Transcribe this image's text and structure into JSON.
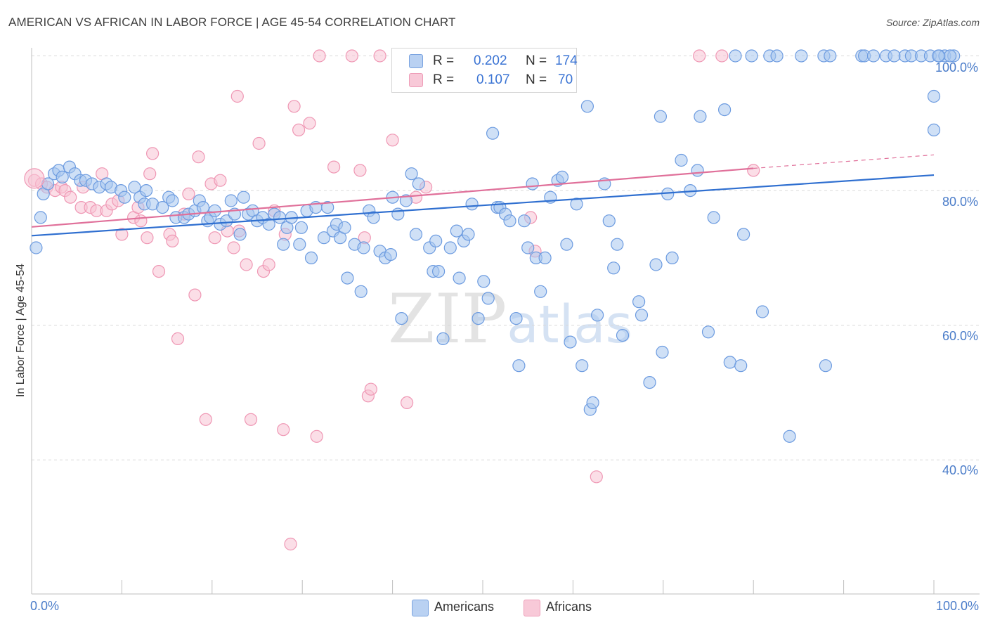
{
  "title": "AMERICAN VS AFRICAN IN LABOR FORCE | AGE 45-54 CORRELATION CHART",
  "source": "Source: ZipAtlas.com",
  "watermark": {
    "zip": "ZIP",
    "atlas": "atlas"
  },
  "legend_top": {
    "americans": {
      "r_label": "R =",
      "r_value": "0.202",
      "n_label": "N =",
      "n_value": "174"
    },
    "africans": {
      "r_label": "R =",
      "r_value": "0.107",
      "n_label": "N =",
      "n_value": "70"
    }
  },
  "legend_bottom": {
    "americans": "Americans",
    "africans": "Africans"
  },
  "colors": {
    "americans_fill": "#a8c6ee",
    "americans_stroke": "#6c9be0",
    "americans_line": "#2f6fd0",
    "africans_fill": "#f7c3d3",
    "africans_stroke": "#ef97b4",
    "africans_line": "#e0709a",
    "tick_text": "#4a7cc9",
    "grid": "#d9d9d9"
  },
  "chart_data": {
    "type": "scatter",
    "title": "AMERICAN VS AFRICAN IN LABOR FORCE | AGE 45-54 CORRELATION CHART",
    "xlabel": "",
    "ylabel": "In Labor Force | Age 45-54",
    "xlim": [
      0,
      100
    ],
    "ylim": [
      20,
      102
    ],
    "x_tick_labels": [
      "0.0%",
      "100.0%"
    ],
    "y_ticks": [
      100,
      80,
      60,
      40
    ],
    "y_tick_labels": [
      "100.0%",
      "80.0%",
      "60.0%",
      "40.0%"
    ],
    "grid": true,
    "legend_position": "top-center",
    "series": [
      {
        "name": "Americans",
        "r": 0.202,
        "n": 174,
        "trend": {
          "x": [
            0,
            100
          ],
          "y": [
            73.3,
            82.3
          ]
        },
        "points": [
          [
            0.5,
            71.5
          ],
          [
            1,
            76
          ],
          [
            1.3,
            79.5
          ],
          [
            1.8,
            81
          ],
          [
            2.5,
            82.5
          ],
          [
            3,
            83
          ],
          [
            3.4,
            82
          ],
          [
            4.2,
            83.5
          ],
          [
            4.8,
            82.5
          ],
          [
            5.4,
            81.5
          ],
          [
            6,
            81.5
          ],
          [
            6.7,
            81
          ],
          [
            7.5,
            80.5
          ],
          [
            8.3,
            81
          ],
          [
            8.8,
            80.5
          ],
          [
            9.9,
            80
          ],
          [
            10.3,
            79
          ],
          [
            11.4,
            80.5
          ],
          [
            12,
            79
          ],
          [
            12.5,
            78
          ],
          [
            12.7,
            80
          ],
          [
            13.4,
            78
          ],
          [
            14.5,
            77.5
          ],
          [
            15.2,
            79
          ],
          [
            15.6,
            78.5
          ],
          [
            16,
            76
          ],
          [
            16.9,
            76
          ],
          [
            17.4,
            76.5
          ],
          [
            18.1,
            77
          ],
          [
            18.6,
            78.5
          ],
          [
            19,
            77.5
          ],
          [
            19.5,
            75.5
          ],
          [
            19.8,
            76
          ],
          [
            20.3,
            77
          ],
          [
            20.9,
            75
          ],
          [
            21.6,
            75.5
          ],
          [
            22.1,
            78.5
          ],
          [
            22.5,
            76.5
          ],
          [
            23.1,
            73.5
          ],
          [
            23.5,
            79
          ],
          [
            24,
            76.5
          ],
          [
            24.5,
            77
          ],
          [
            25,
            75.5
          ],
          [
            25.6,
            76
          ],
          [
            26.3,
            75
          ],
          [
            26.9,
            76.5
          ],
          [
            27.5,
            76
          ],
          [
            27.9,
            72
          ],
          [
            28.3,
            74.5
          ],
          [
            28.8,
            76
          ],
          [
            29.7,
            72
          ],
          [
            29.9,
            74.5
          ],
          [
            30.5,
            77
          ],
          [
            31,
            70
          ],
          [
            31.5,
            77.5
          ],
          [
            32.4,
            73
          ],
          [
            32.8,
            77.5
          ],
          [
            33.4,
            74
          ],
          [
            33.8,
            75
          ],
          [
            34.2,
            73
          ],
          [
            34.7,
            74.5
          ],
          [
            35,
            67
          ],
          [
            35.8,
            72
          ],
          [
            36.5,
            65
          ],
          [
            36.8,
            71.5
          ],
          [
            37.4,
            77
          ],
          [
            37.9,
            76
          ],
          [
            38.6,
            71
          ],
          [
            39.2,
            70
          ],
          [
            39.8,
            70.5
          ],
          [
            40,
            79
          ],
          [
            40.6,
            76.5
          ],
          [
            41,
            61
          ],
          [
            41.5,
            78.5
          ],
          [
            42.1,
            82.5
          ],
          [
            42.6,
            73.5
          ],
          [
            42.9,
            81
          ],
          [
            44.1,
            71.5
          ],
          [
            44.5,
            68
          ],
          [
            44.8,
            72.5
          ],
          [
            45.1,
            68
          ],
          [
            45.6,
            58
          ],
          [
            46.4,
            71.5
          ],
          [
            47.1,
            74
          ],
          [
            47.4,
            67
          ],
          [
            47.9,
            72.5
          ],
          [
            48.4,
            73.5
          ],
          [
            48.8,
            78
          ],
          [
            49.5,
            61
          ],
          [
            50.1,
            66.5
          ],
          [
            50.6,
            64
          ],
          [
            51.1,
            88.5
          ],
          [
            51.6,
            77.5
          ],
          [
            51.9,
            77.5
          ],
          [
            52.5,
            76.5
          ],
          [
            53,
            75.5
          ],
          [
            53.7,
            61
          ],
          [
            54,
            54
          ],
          [
            54.6,
            75.5
          ],
          [
            55,
            71.5
          ],
          [
            55.5,
            81
          ],
          [
            55.9,
            70
          ],
          [
            56.4,
            65
          ],
          [
            56.9,
            70
          ],
          [
            57.5,
            79
          ],
          [
            58.3,
            81.5
          ],
          [
            58.8,
            82
          ],
          [
            59.3,
            72
          ],
          [
            59.7,
            57.5
          ],
          [
            60.4,
            78
          ],
          [
            61,
            54
          ],
          [
            61.6,
            92.5
          ],
          [
            61.9,
            47.5
          ],
          [
            62.2,
            48.5
          ],
          [
            62.7,
            61.5
          ],
          [
            63.5,
            81
          ],
          [
            64,
            75.5
          ],
          [
            64.5,
            68.5
          ],
          [
            64.9,
            72
          ],
          [
            65.5,
            58.5
          ],
          [
            67.3,
            63.5
          ],
          [
            67.6,
            61.5
          ],
          [
            68.5,
            51.5
          ],
          [
            69.2,
            69
          ],
          [
            69.7,
            91
          ],
          [
            69.9,
            56
          ],
          [
            70.5,
            79.5
          ],
          [
            71,
            70
          ],
          [
            72,
            84.5
          ],
          [
            73,
            80
          ],
          [
            73.8,
            83
          ],
          [
            74.1,
            91
          ],
          [
            75,
            59
          ],
          [
            75.6,
            76
          ],
          [
            76.8,
            92
          ],
          [
            77.4,
            54.5
          ],
          [
            78,
            100
          ],
          [
            78.6,
            54
          ],
          [
            78.9,
            73.5
          ],
          [
            79.8,
            100
          ],
          [
            81,
            62
          ],
          [
            81.8,
            100
          ],
          [
            82.6,
            100
          ],
          [
            84,
            43.5
          ],
          [
            85.3,
            100
          ],
          [
            87.8,
            100
          ],
          [
            88,
            54
          ],
          [
            88.5,
            100
          ],
          [
            92,
            100
          ],
          [
            92.3,
            100
          ],
          [
            93.3,
            100
          ],
          [
            94.7,
            100
          ],
          [
            95.6,
            100
          ],
          [
            96.8,
            100
          ],
          [
            97.5,
            100
          ],
          [
            98.6,
            100
          ],
          [
            99.6,
            100
          ],
          [
            100.6,
            100
          ],
          [
            101.2,
            100
          ],
          [
            102.2,
            100
          ],
          [
            100,
            89
          ],
          [
            100,
            94
          ],
          [
            100.5,
            100
          ],
          [
            101.8,
            100
          ]
        ]
      },
      {
        "name": "Africans",
        "r": 0.107,
        "n": 70,
        "trend": {
          "x": [
            0,
            80
          ],
          "y": [
            74.6,
            83.3
          ]
        },
        "trend_dashed": {
          "x": [
            80,
            100
          ],
          "y": [
            83.3,
            85.3
          ]
        },
        "points": [
          [
            0.3,
            81.5
          ],
          [
            1.1,
            81
          ],
          [
            1.7,
            80.5
          ],
          [
            2.6,
            80
          ],
          [
            3.3,
            80.5
          ],
          [
            3.7,
            80
          ],
          [
            4.3,
            79
          ],
          [
            5.5,
            77.5
          ],
          [
            5.7,
            80.5
          ],
          [
            6.5,
            77.5
          ],
          [
            7.2,
            77
          ],
          [
            7.8,
            82.5
          ],
          [
            8.3,
            77
          ],
          [
            8.9,
            78
          ],
          [
            9.6,
            78.5
          ],
          [
            10,
            73.5
          ],
          [
            11.3,
            76
          ],
          [
            11.8,
            77.5
          ],
          [
            12.1,
            75.5
          ],
          [
            12.8,
            73
          ],
          [
            13.1,
            82.5
          ],
          [
            13.4,
            85.5
          ],
          [
            14.1,
            68
          ],
          [
            15.3,
            73.5
          ],
          [
            15.6,
            72.5
          ],
          [
            16.2,
            58
          ],
          [
            16.9,
            76.5
          ],
          [
            17.4,
            79.5
          ],
          [
            18.1,
            64.5
          ],
          [
            18.5,
            85
          ],
          [
            19.3,
            46
          ],
          [
            19.9,
            81
          ],
          [
            20.3,
            73
          ],
          [
            20.9,
            81.5
          ],
          [
            21.7,
            74
          ],
          [
            22.4,
            71.5
          ],
          [
            22.8,
            94
          ],
          [
            23,
            74
          ],
          [
            23.8,
            69
          ],
          [
            24.3,
            46
          ],
          [
            25.2,
            87
          ],
          [
            25.7,
            68
          ],
          [
            26.3,
            69
          ],
          [
            26.9,
            77
          ],
          [
            27.9,
            44.5
          ],
          [
            28.1,
            73.5
          ],
          [
            28.7,
            27.5
          ],
          [
            29.1,
            92.5
          ],
          [
            29.6,
            89
          ],
          [
            30.8,
            90
          ],
          [
            31.6,
            43.5
          ],
          [
            31.9,
            100
          ],
          [
            33.5,
            83.5
          ],
          [
            35.5,
            100
          ],
          [
            36.4,
            83
          ],
          [
            36.9,
            73
          ],
          [
            37.3,
            49.5
          ],
          [
            37.6,
            50.5
          ],
          [
            38.6,
            100
          ],
          [
            40,
            87.5
          ],
          [
            41.6,
            48.5
          ],
          [
            42.6,
            79
          ],
          [
            43.7,
            80.5
          ],
          [
            54,
            100
          ],
          [
            55.3,
            76
          ],
          [
            55.8,
            71
          ],
          [
            62.6,
            37.5
          ],
          [
            74,
            100
          ],
          [
            76.5,
            100
          ],
          [
            80,
            83
          ]
        ]
      }
    ]
  }
}
